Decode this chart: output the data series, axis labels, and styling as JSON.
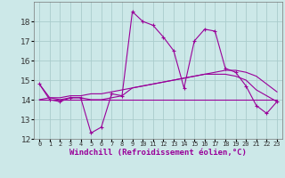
{
  "title": "",
  "xlabel": "Windchill (Refroidissement éolien,°C)",
  "background_color": "#cce8e8",
  "line_color": "#990099",
  "grid_color": "#aacccc",
  "x": [
    0,
    1,
    2,
    3,
    4,
    5,
    6,
    7,
    8,
    9,
    10,
    11,
    12,
    13,
    14,
    15,
    16,
    17,
    18,
    19,
    20,
    21,
    22,
    23
  ],
  "series1": [
    14.8,
    14.0,
    13.9,
    14.1,
    14.1,
    12.3,
    12.6,
    14.3,
    14.2,
    18.5,
    18.0,
    17.8,
    17.2,
    16.5,
    14.6,
    17.0,
    17.6,
    17.5,
    15.6,
    15.4,
    14.7,
    13.7,
    13.3,
    13.9
  ],
  "series2": [
    14.0,
    14.0,
    14.0,
    14.0,
    14.0,
    14.0,
    14.0,
    14.0,
    14.0,
    14.0,
    14.0,
    14.0,
    14.0,
    14.0,
    14.0,
    14.0,
    14.0,
    14.0,
    14.0,
    14.0,
    14.0,
    14.0,
    14.0,
    14.0
  ],
  "series3": [
    14.0,
    14.1,
    14.1,
    14.2,
    14.2,
    14.3,
    14.3,
    14.4,
    14.5,
    14.6,
    14.7,
    14.8,
    14.9,
    15.0,
    15.1,
    15.2,
    15.3,
    15.4,
    15.5,
    15.5,
    15.4,
    15.2,
    14.8,
    14.4
  ],
  "series4": [
    14.8,
    14.1,
    14.0,
    14.1,
    14.1,
    14.0,
    14.0,
    14.1,
    14.2,
    14.6,
    14.7,
    14.8,
    14.9,
    15.0,
    15.1,
    15.2,
    15.3,
    15.3,
    15.3,
    15.2,
    15.0,
    14.5,
    14.2,
    13.9
  ],
  "ylim": [
    12,
    19
  ],
  "xlim": [
    -0.5,
    23.5
  ],
  "yticks": [
    12,
    13,
    14,
    15,
    16,
    17,
    18
  ],
  "xtick_labels": [
    "0",
    "1",
    "2",
    "3",
    "4",
    "5",
    "6",
    "7",
    "8",
    "9",
    "10",
    "11",
    "12",
    "13",
    "14",
    "15",
    "16",
    "17",
    "18",
    "19",
    "20",
    "21",
    "22",
    "23"
  ]
}
